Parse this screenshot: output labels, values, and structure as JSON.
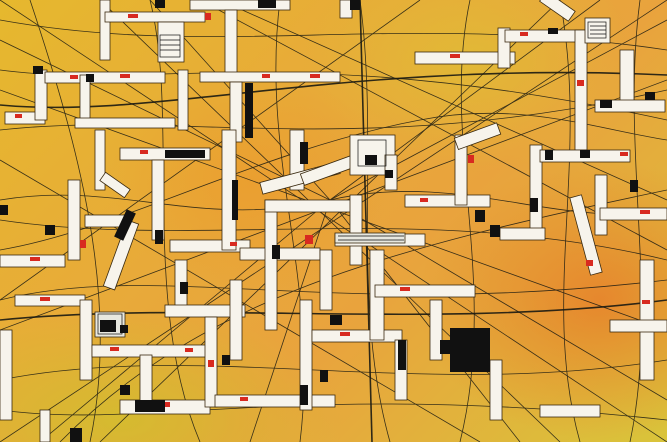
{
  "artwork": {
    "kind": "abstract-urban-map-painting",
    "colors": {
      "background_yellow": "#e6b82e",
      "background_orange": "#e8783a",
      "background_green_yellow": "#d0c63a",
      "block_white": "#f7f4ec",
      "accent_red": "#d82a20",
      "accent_black": "#111111",
      "line_black": "#1a1a12"
    }
  }
}
